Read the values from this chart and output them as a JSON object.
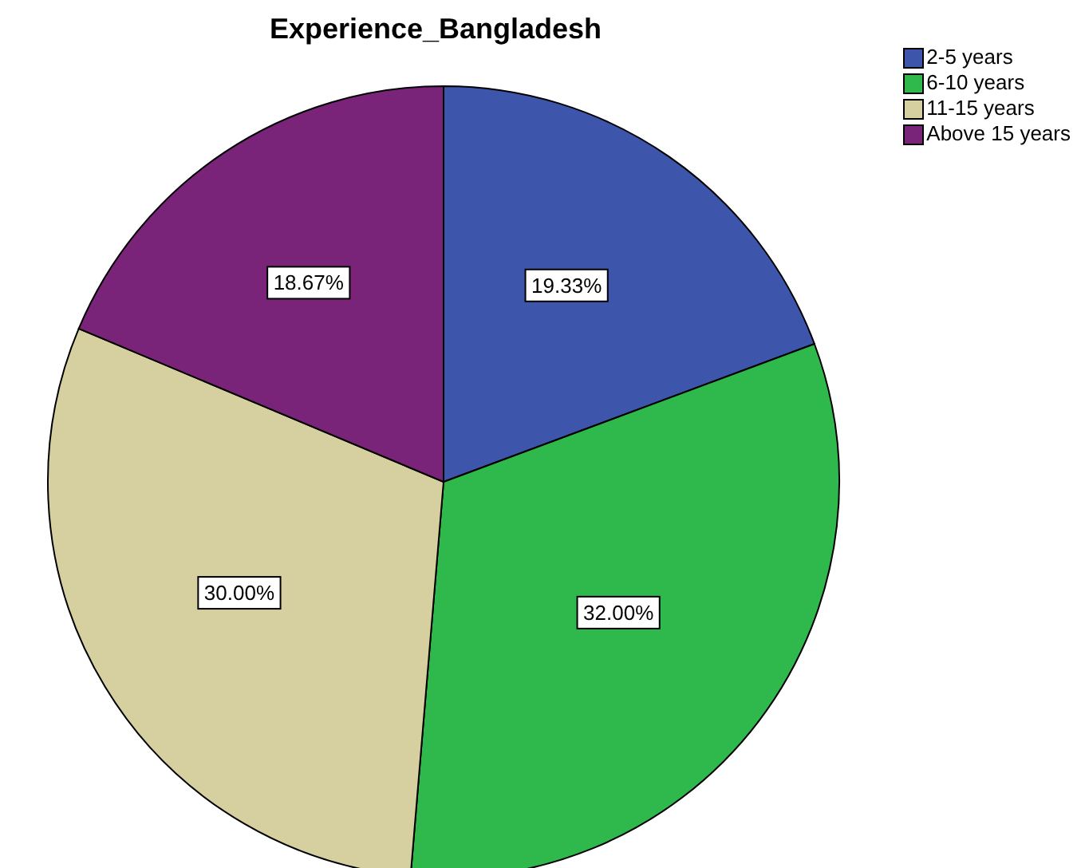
{
  "chart_data": {
    "type": "pie",
    "title": "Experience_Bangladesh",
    "categories": [
      "2-5 years",
      "6-10 years",
      "11-15 years",
      "Above 15 years"
    ],
    "values": [
      19.33,
      32.0,
      30.0,
      18.67
    ],
    "colors": [
      "#3d56ab",
      "#2fb84b",
      "#d6cf9f",
      "#7a2479"
    ],
    "value_labels": [
      "19.33%",
      "32.00%",
      "30.00%",
      "18.67%"
    ],
    "legend": "top right"
  }
}
